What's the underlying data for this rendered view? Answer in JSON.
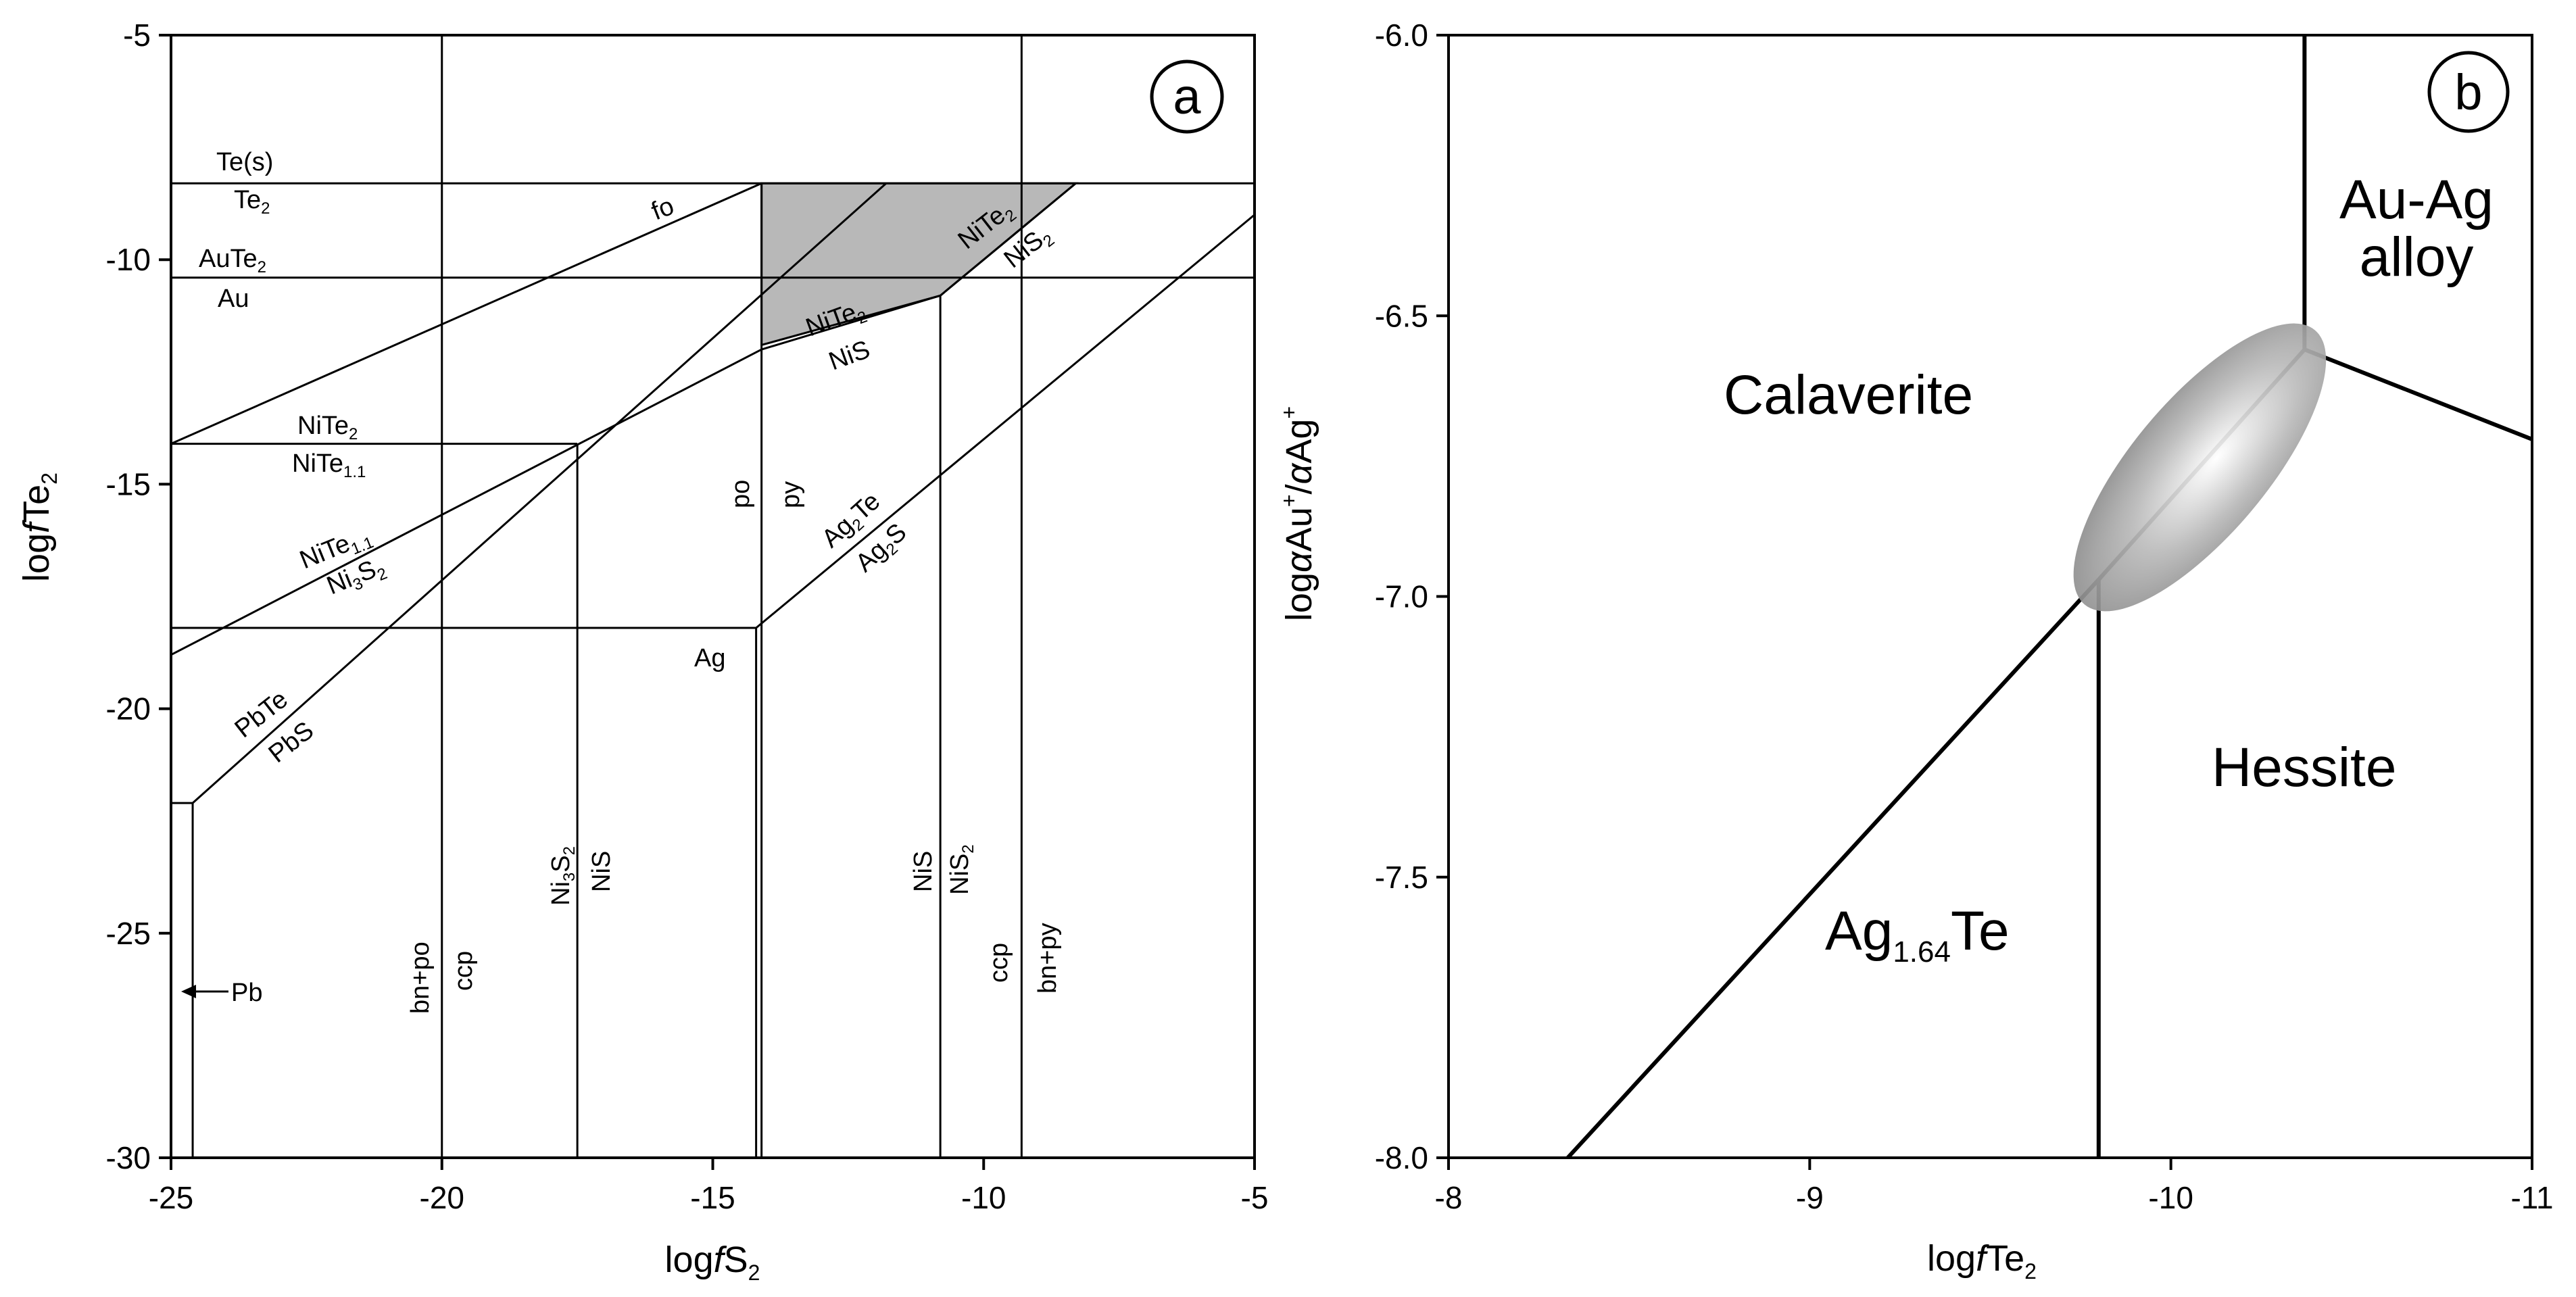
{
  "chart_data": [
    {
      "panel": "a",
      "type": "line",
      "xlabel": "logfS2",
      "ylabel": "logfTe2",
      "xlim": [
        -25,
        -5
      ],
      "ylim": [
        -30,
        -5
      ],
      "xticks": [
        "-25",
        "-20",
        "-15",
        "-10",
        "-5"
      ],
      "yticks": [
        "-5",
        "-10",
        "-15",
        "-20",
        "-25",
        "-30"
      ],
      "grid": false,
      "legend": "none",
      "shaded_region_color": "#b8b8b8",
      "shaded_region": [
        [
          -14.1,
          -8.3
        ],
        [
          -11.9,
          -8.3
        ],
        [
          -10.8,
          -8.3
        ],
        [
          -8.3,
          -8.3
        ],
        [
          -10.8,
          -10.8
        ],
        [
          -14.1,
          -11.9
        ]
      ],
      "boundaries": [
        {
          "x": [
            -25,
            -5
          ],
          "y": [
            -8.3,
            -8.3
          ],
          "labels": [
            "Te(s)",
            "Te2"
          ]
        },
        {
          "x": [
            -25,
            -5
          ],
          "y": [
            -10.4,
            -10.4
          ],
          "labels": [
            "AuTe2",
            "Au"
          ]
        },
        {
          "x": [
            -25,
            -14.1
          ],
          "y": [
            -14.1,
            -8.3
          ],
          "labels": [
            "fo"
          ]
        },
        {
          "x": [
            -25,
            -17.5
          ],
          "y": [
            -14.1,
            -14.1
          ],
          "labels": [
            "NiTe2",
            "NiTe1.1"
          ]
        },
        {
          "x": [
            -25,
            -14.1
          ],
          "y": [
            -18.8,
            -12.0
          ],
          "labels": [
            "NiTe1.1",
            "Ni3S2"
          ]
        },
        {
          "x": [
            -14.1,
            -10.8
          ],
          "y": [
            -12.0,
            -10.8
          ],
          "labels": [
            "NiTe2",
            "NiS"
          ]
        },
        {
          "x": [
            -10.8,
            -8.3
          ],
          "y": [
            -10.8,
            -8.3
          ],
          "labels": [
            "NiTe2",
            "NiS2"
          ]
        },
        {
          "x": [
            -24.6,
            -11.8
          ],
          "y": [
            -22.1,
            -8.3
          ],
          "labels": [
            "PbTe",
            "PbS"
          ]
        },
        {
          "x": [
            -25,
            -14.2
          ],
          "y": [
            -18.2,
            -18.2
          ],
          "labels": []
        },
        {
          "x": [
            -14.2,
            -5
          ],
          "y": [
            -18.2,
            -9.0
          ],
          "labels": [
            "Ag2Te",
            "Ag2S"
          ]
        },
        {
          "x": [
            -25,
            -24.6
          ],
          "y": [
            -22.1,
            -22.1
          ],
          "labels": []
        },
        {
          "x": [
            -24.6,
            -24.6
          ],
          "y": [
            -30,
            -22.1
          ],
          "labels": [
            "Pb"
          ]
        },
        {
          "x": [
            -20,
            -20
          ],
          "y": [
            -30,
            -5
          ],
          "labels": [
            "bn+po",
            "ccp"
          ]
        },
        {
          "x": [
            -17.5,
            -17.5
          ],
          "y": [
            -30,
            -14.1
          ],
          "labels": [
            "Ni3S2",
            "NiS"
          ]
        },
        {
          "x": [
            -14.2,
            -14.2
          ],
          "y": [
            -30,
            -18.2
          ],
          "labels": [
            "Ag"
          ]
        },
        {
          "x": [
            -14.1,
            -14.1
          ],
          "y": [
            -30,
            -8.3
          ],
          "labels": [
            "po",
            "py"
          ]
        },
        {
          "x": [
            -10.8,
            -10.8
          ],
          "y": [
            -30,
            -10.8
          ],
          "labels": [
            "NiS",
            "NiS2"
          ]
        },
        {
          "x": [
            -9.3,
            -9.3
          ],
          "y": [
            -30,
            -5
          ],
          "labels": [
            "ccp",
            "bn+py"
          ]
        }
      ]
    },
    {
      "panel": "b",
      "type": "line",
      "xlabel": "logfTe2",
      "ylabel": "logαAu+/αAg+",
      "xlim": [
        -8,
        -11
      ],
      "ylim": [
        -8.0,
        -6.0
      ],
      "xticks": [
        "-8",
        "-9",
        "-10",
        "-11"
      ],
      "yticks": [
        "-6.0",
        "-6.5",
        "-7.0",
        "-7.5",
        "-8.0"
      ],
      "grid": false,
      "legend": "none",
      "regions": [
        "Calaverite",
        "Au-Ag alloy",
        "Hessite",
        "Ag1.64Te"
      ],
      "boundaries": [
        {
          "x": [
            -8.33,
            -9.8
          ],
          "y": [
            -8.0,
            -6.97
          ]
        },
        {
          "x": [
            -9.8,
            -9.8
          ],
          "y": [
            -8.0,
            -6.97
          ]
        },
        {
          "x": [
            -9.8,
            -10.37
          ],
          "y": [
            -6.97,
            -6.56
          ]
        },
        {
          "x": [
            -10.37,
            -10.37
          ],
          "y": [
            -6.56,
            -6.0
          ]
        },
        {
          "x": [
            -10.37,
            -11.0
          ],
          "y": [
            -6.56,
            -6.72
          ]
        }
      ],
      "uncertainty_ellipse": {
        "center": [
          -10.08,
          -6.77
        ],
        "color": "#9a9a9a"
      }
    }
  ],
  "text": {
    "panel_a_letter": "a",
    "panel_b_letter": "b",
    "a_xlabel_main": "log",
    "a_xlabel_italic": "f",
    "a_xlabel_var": "S",
    "a_xlabel_sub": "2",
    "a_ylabel_main": "log",
    "a_ylabel_italic": "f",
    "a_ylabel_var": "Te",
    "a_ylabel_sub": "2",
    "b_xlabel_main": "log",
    "b_xlabel_italic": "f",
    "b_xlabel_var": "Te",
    "b_xlabel_sub": "2",
    "b_ylabel_log": "log",
    "b_ylabel_alpha1": "α",
    "b_ylabel_au": "Au",
    "b_ylabel_sup": "+",
    "b_ylabel_slash": "/",
    "b_ylabel_alpha2": "α",
    "b_ylabel_ag": "Ag",
    "calaverite": "Calaverite",
    "auag_line1": "Au-Ag",
    "auag_line2": "alloy",
    "hessite": "Hessite",
    "ag_main": "Ag",
    "ag_sub": "1.64",
    "ag_te": "Te",
    "te_s": "Te(s)",
    "te": "Te",
    "two": "2",
    "aute": "AuTe",
    "au": "Au",
    "fo": "fo",
    "nite": "NiTe",
    "one_one": "1.1",
    "ni": "Ni",
    "three": "3",
    "s": "S",
    "nis": "NiS",
    "pbte": "PbTe",
    "pbs": "PbS",
    "ag": "Ag",
    "pb": "Pb",
    "po": "po",
    "py": "py",
    "ccp": "ccp",
    "bn_po": "bn+po",
    "bn_py": "bn+py"
  }
}
